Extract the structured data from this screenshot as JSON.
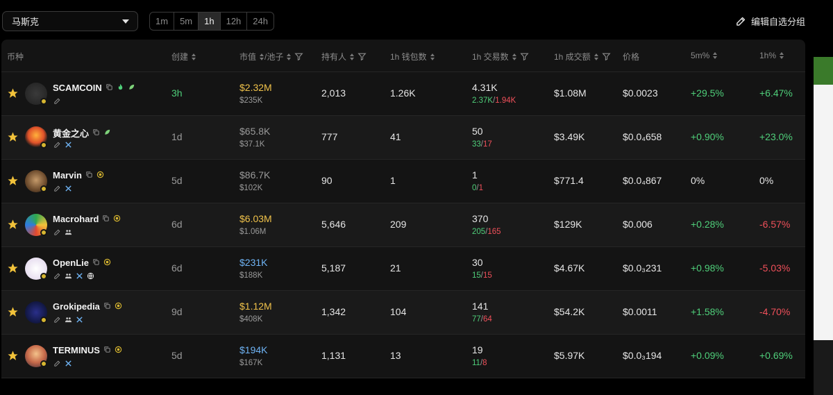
{
  "topbar": {
    "group_select": "马斯克",
    "timeframes": [
      "1m",
      "5m",
      "1h",
      "12h",
      "24h"
    ],
    "active_timeframe": "1h",
    "edit_group_label": "编辑自选分组"
  },
  "headers": {
    "coin": "币种",
    "created": "创建",
    "mcap": "市值",
    "pool": "/池子",
    "holders": "持有人",
    "wallets": "1h 钱包数",
    "txs": "1h 交易数",
    "volume": "1h 成交额",
    "price": "价格",
    "chg5m": "5m%",
    "chg1h": "1h%"
  },
  "rows": [
    {
      "name": "SCAMCOIN",
      "age": "3h",
      "mcap": "$2.32M",
      "pool": "$235K",
      "holders": "2,013",
      "wallets": "1.26K",
      "txs": "4.31K",
      "buys": "2.37K",
      "sells": "1.94K",
      "volume": "$1.08M",
      "price": "$0.0023",
      "chg5m": "+29.5%",
      "chg1h": "+6.47%"
    },
    {
      "name": "黄金之心",
      "age": "1d",
      "mcap": "$65.8K",
      "pool": "$37.1K",
      "holders": "777",
      "wallets": "41",
      "txs": "50",
      "buys": "33",
      "sells": "17",
      "volume": "$3.49K",
      "price": "$0.0₄658",
      "chg5m": "+0.90%",
      "chg1h": "+23.0%"
    },
    {
      "name": "Marvin",
      "age": "5d",
      "mcap": "$86.7K",
      "pool": "$102K",
      "holders": "90",
      "wallets": "1",
      "txs": "1",
      "buys": "0",
      "sells": "1",
      "volume": "$771.4",
      "price": "$0.0₄867",
      "chg5m": "0%",
      "chg1h": "0%"
    },
    {
      "name": "Macrohard",
      "age": "6d",
      "mcap": "$6.03M",
      "pool": "$1.06M",
      "holders": "5,646",
      "wallets": "209",
      "txs": "370",
      "buys": "205",
      "sells": "165",
      "volume": "$129K",
      "price": "$0.006",
      "chg5m": "+0.28%",
      "chg1h": "-6.57%"
    },
    {
      "name": "OpenLie",
      "age": "6d",
      "mcap": "$231K",
      "pool": "$188K",
      "holders": "5,187",
      "wallets": "21",
      "txs": "30",
      "buys": "15",
      "sells": "15",
      "volume": "$4.67K",
      "price": "$0.0₃231",
      "chg5m": "+0.98%",
      "chg1h": "-5.03%"
    },
    {
      "name": "Grokipedia",
      "age": "9d",
      "mcap": "$1.12M",
      "pool": "$408K",
      "holders": "1,342",
      "wallets": "104",
      "txs": "141",
      "buys": "77",
      "sells": "64",
      "volume": "$54.2K",
      "price": "$0.0011",
      "chg5m": "+1.58%",
      "chg1h": "-4.70%"
    },
    {
      "name": "TERMINUS",
      "age": "5d",
      "mcap": "$194K",
      "pool": "$167K",
      "holders": "1,131",
      "wallets": "13",
      "txs": "19",
      "buys": "11",
      "sells": "8",
      "volume": "$5.97K",
      "price": "$0.0₃194",
      "chg5m": "+0.09%",
      "chg1h": "+0.69%"
    }
  ],
  "colors": {
    "positive": "#4fcf7a",
    "negative": "#f0505a",
    "mcap_high": "#f0c24a",
    "mcap_mid": "#6fb4f5",
    "star": "#f2c23a"
  }
}
